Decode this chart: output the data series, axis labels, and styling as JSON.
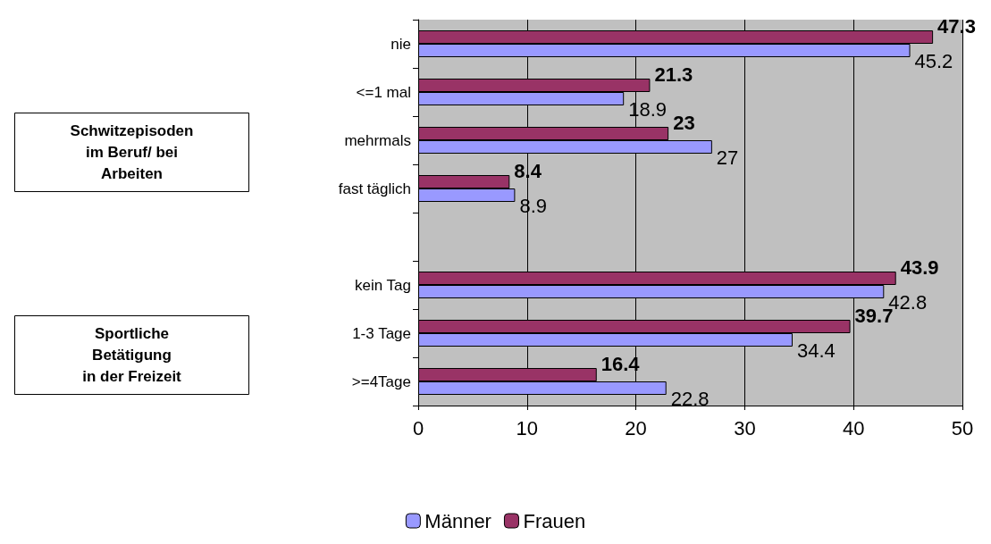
{
  "chart_data": {
    "type": "bar",
    "orientation": "horizontal",
    "categories": [
      "nie",
      "<=1 mal",
      "mehrmals",
      "fast täglich",
      null,
      "kein Tag",
      "1-3 Tage",
      ">=4Tage"
    ],
    "series": [
      {
        "name": "Männer",
        "color": "#9999ff",
        "values": [
          45.2,
          18.9,
          27,
          8.9,
          null,
          42.8,
          34.4,
          22.8
        ]
      },
      {
        "name": "Frauen",
        "color": "#993366",
        "values": [
          47.3,
          21.3,
          23,
          8.4,
          null,
          43.9,
          39.7,
          16.4
        ]
      }
    ],
    "xlim": [
      0,
      50
    ],
    "xticks": [
      0,
      10,
      20,
      30,
      40,
      50
    ],
    "grid": "x",
    "legend": "bottom",
    "data_labels": true,
    "annotations": [
      "Schwitzepisoden\nim Beruf/ bei\nArbeiten",
      "Sportliche\nBetätigung\nin der Freizeit"
    ]
  }
}
